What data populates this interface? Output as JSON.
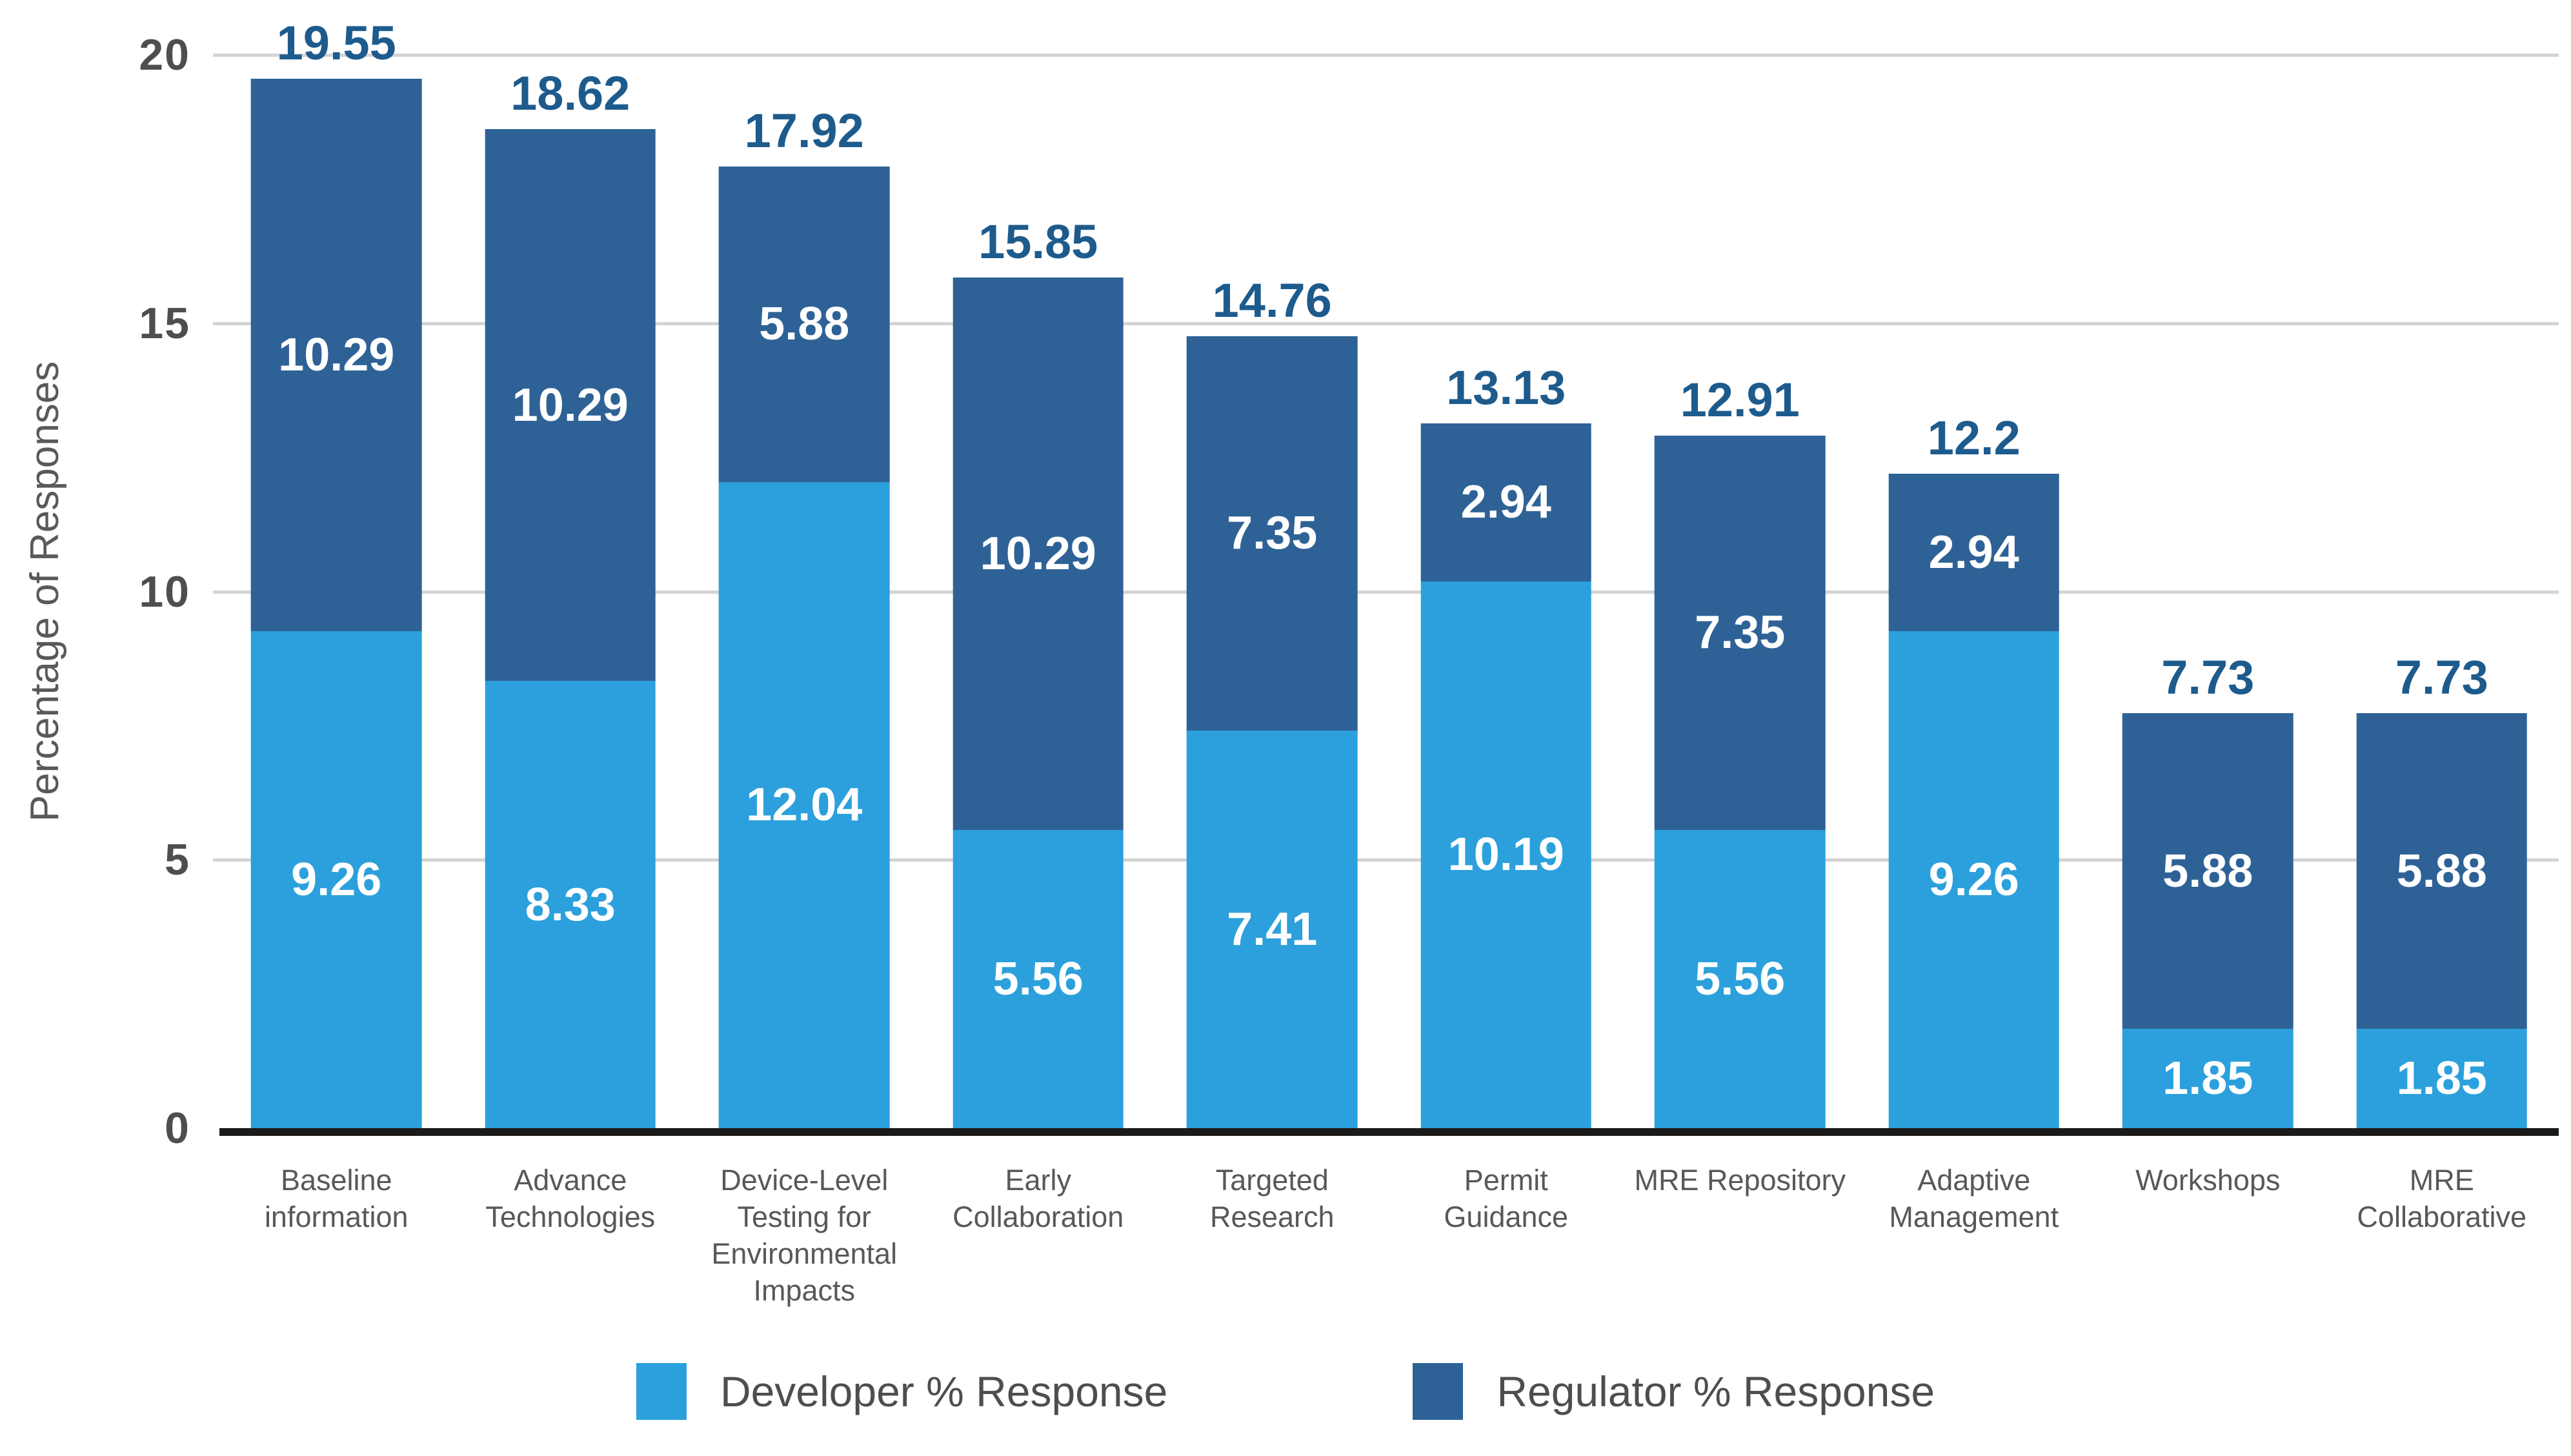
{
  "colors": {
    "developer": "#2CA0DC",
    "regulator": "#2E6296",
    "total_label": "#1E5B8D",
    "grid": "#D4D4D4",
    "axis_line": "#1A1A1A",
    "tick_label": "#4D4E50",
    "category_label": "#57585A",
    "legend_text": "#4D4E50",
    "segment_label": "#FFFFFF",
    "background": "#FFFFFF"
  },
  "chart_data": {
    "type": "bar",
    "stacked": true,
    "title": "",
    "xlabel": "",
    "ylabel": "Percentage of Responses",
    "ylim": [
      0,
      20
    ],
    "yticks": [
      0,
      5,
      10,
      15,
      20
    ],
    "grid": true,
    "legend_position": "bottom",
    "categories": [
      "Baseline information",
      "Advance Technologies",
      "Device-Level Testing for Environmental Impacts",
      "Early Collaboration",
      "Targeted Research",
      "Permit Guidance",
      "MRE Repository",
      "Adaptive Management",
      "Workshops",
      "MRE Collaborative"
    ],
    "series": [
      {
        "key": "developer",
        "name": "Developer % Response",
        "color": "#2CA0DC",
        "values": [
          9.26,
          8.33,
          12.04,
          5.56,
          7.41,
          10.19,
          5.56,
          9.26,
          1.85,
          1.85
        ],
        "labels": [
          "9.26",
          "8.33",
          "12.04",
          "5.56",
          "7.41",
          "10.19",
          "5.56",
          "9.26",
          "1.85",
          "1.85"
        ]
      },
      {
        "key": "regulator",
        "name": "Regulator % Response",
        "color": "#2E6296",
        "values": [
          10.29,
          10.29,
          5.88,
          10.29,
          7.35,
          2.94,
          7.35,
          2.94,
          5.88,
          5.88
        ],
        "labels": [
          "10.29",
          "10.29",
          "5.88",
          "10.29",
          "7.35",
          "2.94",
          "7.35",
          "2.94",
          "5.88",
          "5.88"
        ]
      }
    ],
    "totals": [
      "19.55",
      "18.62",
      "17.92",
      "15.85",
      "14.76",
      "13.13",
      "12.91",
      "12.2",
      "7.73",
      "7.73"
    ]
  }
}
